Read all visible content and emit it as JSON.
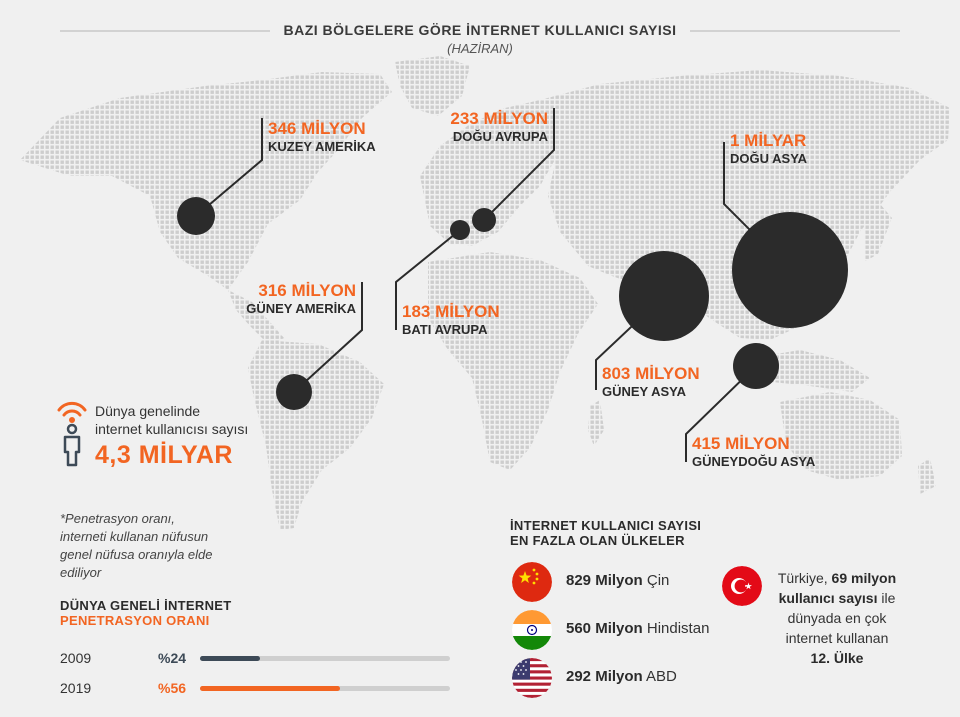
{
  "header": {
    "title": "BAZI BÖLGELERE GÖRE İNTERNET KULLANICI SAYISI",
    "subtitle": "(HAZİRAN)"
  },
  "regions": [
    {
      "value": "346 MİLYON",
      "name": "KUZEY AMERİKA",
      "users_millions": 346
    },
    {
      "value": "233 MİLYON",
      "name": "DOĞU AVRUPA",
      "users_millions": 233
    },
    {
      "value": "1 MİLYAR",
      "name": "DOĞU ASYA",
      "users_millions": 1000
    },
    {
      "value": "316 MİLYON",
      "name": "GÜNEY AMERİKA",
      "users_millions": 316
    },
    {
      "value": "183 MİLYON",
      "name": "BATI AVRUPA",
      "users_millions": 183
    },
    {
      "value": "803 MİLYON",
      "name": "GÜNEY ASYA",
      "users_millions": 803
    },
    {
      "value": "415 MİLYON",
      "name": "GÜNEYDOĞU ASYA",
      "users_millions": 415
    }
  ],
  "world": {
    "line1": "Dünya genelinde",
    "line2": "internet kullanıcısı sayısı",
    "total": "4,3 MİLYAR"
  },
  "footnote": {
    "line1": "*Penetrasyon oranı,",
    "line2": "interneti kullanan nüfusun",
    "line3": "genel nüfusa oranıyla elde",
    "line4": "ediliyor"
  },
  "penetration": {
    "title1": "DÜNYA GENELİ İNTERNET",
    "title2": "PENETRASYON ORANI",
    "rows": [
      {
        "year": "2009",
        "label": "%24",
        "value": 24,
        "color": "#3d4a57"
      },
      {
        "year": "2019",
        "label": "%56",
        "value": 56,
        "color": "#f26522"
      }
    ]
  },
  "top_countries": {
    "title1": "İNTERNET KULLANICI SAYISI",
    "title2": "EN FAZLA OLAN ÜLKELER",
    "items": [
      {
        "count": "829 Milyon",
        "country": "Çin",
        "flag": "china-flag-icon"
      },
      {
        "count": "560 Milyon",
        "country": "Hindistan",
        "flag": "india-flag-icon"
      },
      {
        "count": "292 Milyon",
        "country": "ABD",
        "flag": "usa-flag-icon"
      }
    ]
  },
  "turkey": {
    "flag": "turkey-flag-icon",
    "line1_pre": "Türkiye, ",
    "line1_bold": "69 milyon",
    "line2_bold": "kullanıcı sayısı",
    "line2_post": " ile",
    "line3": "dünyada en çok",
    "line4": "internet kullanan",
    "line5": "12. Ülke"
  },
  "colors": {
    "accent": "#f26522",
    "dark": "#2b2b2b",
    "bar_2009": "#3d4a57",
    "map_dot": "#cfcfcf"
  }
}
